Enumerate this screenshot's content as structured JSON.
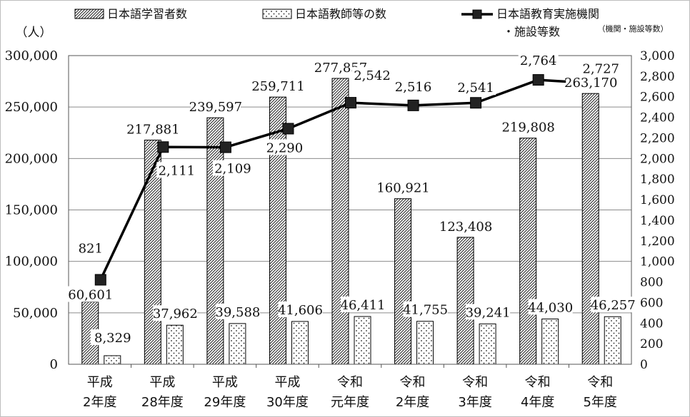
{
  "chart_data": {
    "type": "bar",
    "categories": [
      [
        "平成",
        "2年度"
      ],
      [
        "平成",
        "28年度"
      ],
      [
        "平成",
        "29年度"
      ],
      [
        "平成",
        "30年度"
      ],
      [
        "令和",
        "元年度"
      ],
      [
        "令和",
        "2年度"
      ],
      [
        "令和",
        "3年度"
      ],
      [
        "令和",
        "4年度"
      ],
      [
        "令和",
        "5年度"
      ]
    ],
    "series": [
      {
        "name": "日本語学習者数",
        "kind": "bar",
        "axis": "left",
        "pattern": "diagonal-hatch",
        "values": [
          60601,
          217881,
          239597,
          259711,
          277857,
          160921,
          123408,
          219808,
          263170
        ],
        "labels": [
          "60,601",
          "217,881",
          "239,597",
          "259,711",
          "277,857",
          "160,921",
          "123,408",
          "219,808",
          "263,170"
        ]
      },
      {
        "name": "日本語教師等の数",
        "kind": "bar",
        "axis": "left",
        "pattern": "dots",
        "values": [
          8329,
          37962,
          39588,
          41606,
          46411,
          41755,
          39241,
          44030,
          46257
        ],
        "labels": [
          "8,329",
          "37,962",
          "39,588",
          "41,606",
          "46,411",
          "41,755",
          "39,241",
          "44,030",
          "46,257"
        ]
      },
      {
        "name": "日本語教育実施機関・施設等数",
        "legend_lines": [
          "日本語教育実施機関",
          "・施設等数"
        ],
        "kind": "line",
        "axis": "right",
        "marker": "square",
        "values": [
          821,
          2111,
          2109,
          2290,
          2542,
          2516,
          2541,
          2764,
          2727
        ],
        "labels": [
          "821",
          "2,111",
          "2,109",
          "2,290",
          "2,542",
          "2,516",
          "2,541",
          "2,764",
          "2,727"
        ]
      }
    ],
    "y_left": {
      "unit_label": "（人）",
      "min": 0,
      "max": 300000,
      "ticks": [
        "0",
        "50,000",
        "100,000",
        "150,000",
        "200,000",
        "250,000",
        "300,000"
      ]
    },
    "y_right": {
      "unit_label": "（機関・施設等数）",
      "min": 0,
      "max": 3000,
      "ticks": [
        "0",
        "200",
        "400",
        "600",
        "800",
        "1,000",
        "1,200",
        "1,400",
        "1,600",
        "1,800",
        "2,000",
        "2,200",
        "2,400",
        "2,600",
        "2,800",
        "3,000"
      ]
    },
    "grid": true,
    "legend_position": "top",
    "colors": {
      "line": "#000000",
      "grid": "#8c8c8c",
      "bar_stroke": "#000000"
    }
  }
}
